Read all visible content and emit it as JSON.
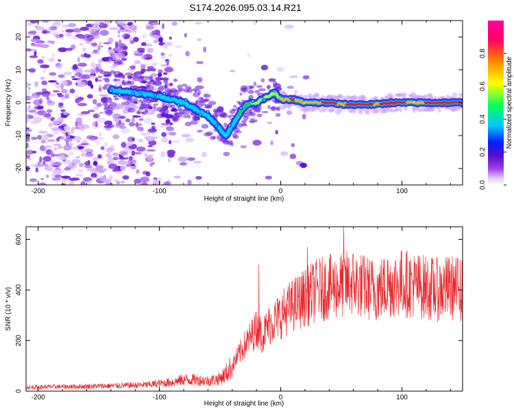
{
  "title": "S174.2026.095.03.14.R21",
  "colors": {
    "snr_line": "#e8262a",
    "ridge_peak": "#e02020",
    "ridge_mid": "#20d040",
    "ridge_low": "#1060ff",
    "noise": "#8a2be2"
  },
  "chart_data": [
    {
      "type": "heatmap",
      "title": "",
      "xlabel": "Height of straight line (km)",
      "ylabel": "Frequency (Hz)",
      "xlim": [
        -210,
        150
      ],
      "ylim": [
        -25,
        25
      ],
      "xticks": [
        -200,
        -100,
        0,
        100
      ],
      "xtick_labels": [
        "-200",
        "-100",
        "0",
        "100"
      ],
      "yticks": [
        20,
        10,
        0,
        -10,
        -20
      ],
      "ytick_labels": [
        "20",
        "10",
        "0",
        "-10",
        "-20"
      ],
      "colorbar": {
        "label": "Normalized spectral amplitude",
        "range": [
          0,
          1
        ],
        "ticks": [
          0.0,
          0.2,
          0.4,
          0.6,
          0.8
        ],
        "tick_labels": [
          "0.0",
          "0.2",
          "0.4",
          "0.6",
          "0.8"
        ],
        "colormap": [
          "#ffffff",
          "#e6c8ff",
          "#a040e0",
          "#5010d0",
          "#0020ff",
          "#00c8ff",
          "#00ff60",
          "#ffff00",
          "#ff8000",
          "#ff0060",
          "#ff00a0"
        ]
      },
      "ridge": {
        "x": [
          -140,
          -120,
          -100,
          -90,
          -80,
          -70,
          -60,
          -50,
          -45,
          -40,
          -35,
          -30,
          -25,
          -20,
          -15,
          -10,
          -5,
          0,
          10,
          20,
          30,
          40,
          50,
          60,
          70,
          80,
          90,
          100,
          110,
          120,
          130,
          140,
          150
        ],
        "y": [
          4,
          3,
          2,
          1,
          0,
          -2,
          -4,
          -8,
          -10,
          -7,
          -4,
          -1,
          0,
          0,
          1,
          2,
          3,
          1,
          1,
          0,
          0,
          0,
          -0.5,
          -0.5,
          -0.5,
          -0.5,
          0,
          0,
          0,
          0,
          0,
          0,
          0
        ],
        "amplitude": [
          0.25,
          0.25,
          0.2,
          0.2,
          0.15,
          0.15,
          0.15,
          0.2,
          0.3,
          0.35,
          0.4,
          0.45,
          0.55,
          0.6,
          0.55,
          0.6,
          0.55,
          0.75,
          0.85,
          0.7,
          0.8,
          0.85,
          0.8,
          0.85,
          0.85,
          0.8,
          0.9,
          0.9,
          0.7,
          0.85,
          0.9,
          0.9,
          0.9
        ]
      }
    },
    {
      "type": "line",
      "title": "",
      "xlabel": "Height of straight line (km)",
      "ylabel": "SNR (10 * v/v)",
      "xlim": [
        -210,
        150
      ],
      "ylim": [
        0,
        650
      ],
      "xticks": [
        -200,
        -100,
        0,
        100
      ],
      "xtick_labels": [
        "-200",
        "-100",
        "0",
        "100"
      ],
      "yticks": [
        0,
        200,
        400,
        600
      ],
      "ytick_labels": [
        "0",
        "200",
        "400",
        "600"
      ],
      "series": [
        {
          "name": "SNR",
          "x": [
            -210,
            -190,
            -170,
            -150,
            -130,
            -110,
            -100,
            -90,
            -80,
            -70,
            -60,
            -50,
            -45,
            -40,
            -35,
            -30,
            -25,
            -20,
            -15,
            -10,
            -5,
            0,
            10,
            20,
            30,
            40,
            50,
            60,
            70,
            80,
            90,
            100,
            110,
            120,
            130,
            140,
            150
          ],
          "values": [
            15,
            17,
            18,
            20,
            22,
            25,
            30,
            35,
            45,
            45,
            40,
            50,
            70,
            100,
            140,
            180,
            210,
            250,
            220,
            260,
            280,
            300,
            340,
            370,
            400,
            410,
            420,
            430,
            410,
            400,
            420,
            430,
            420,
            410,
            400,
            410,
            400
          ]
        }
      ],
      "spikes": [
        {
          "x": -18,
          "y": 500
        },
        {
          "x": 22,
          "y": 570
        },
        {
          "x": 52,
          "y": 650
        },
        {
          "x": 88,
          "y": 520
        },
        {
          "x": 148,
          "y": 520
        }
      ]
    }
  ]
}
